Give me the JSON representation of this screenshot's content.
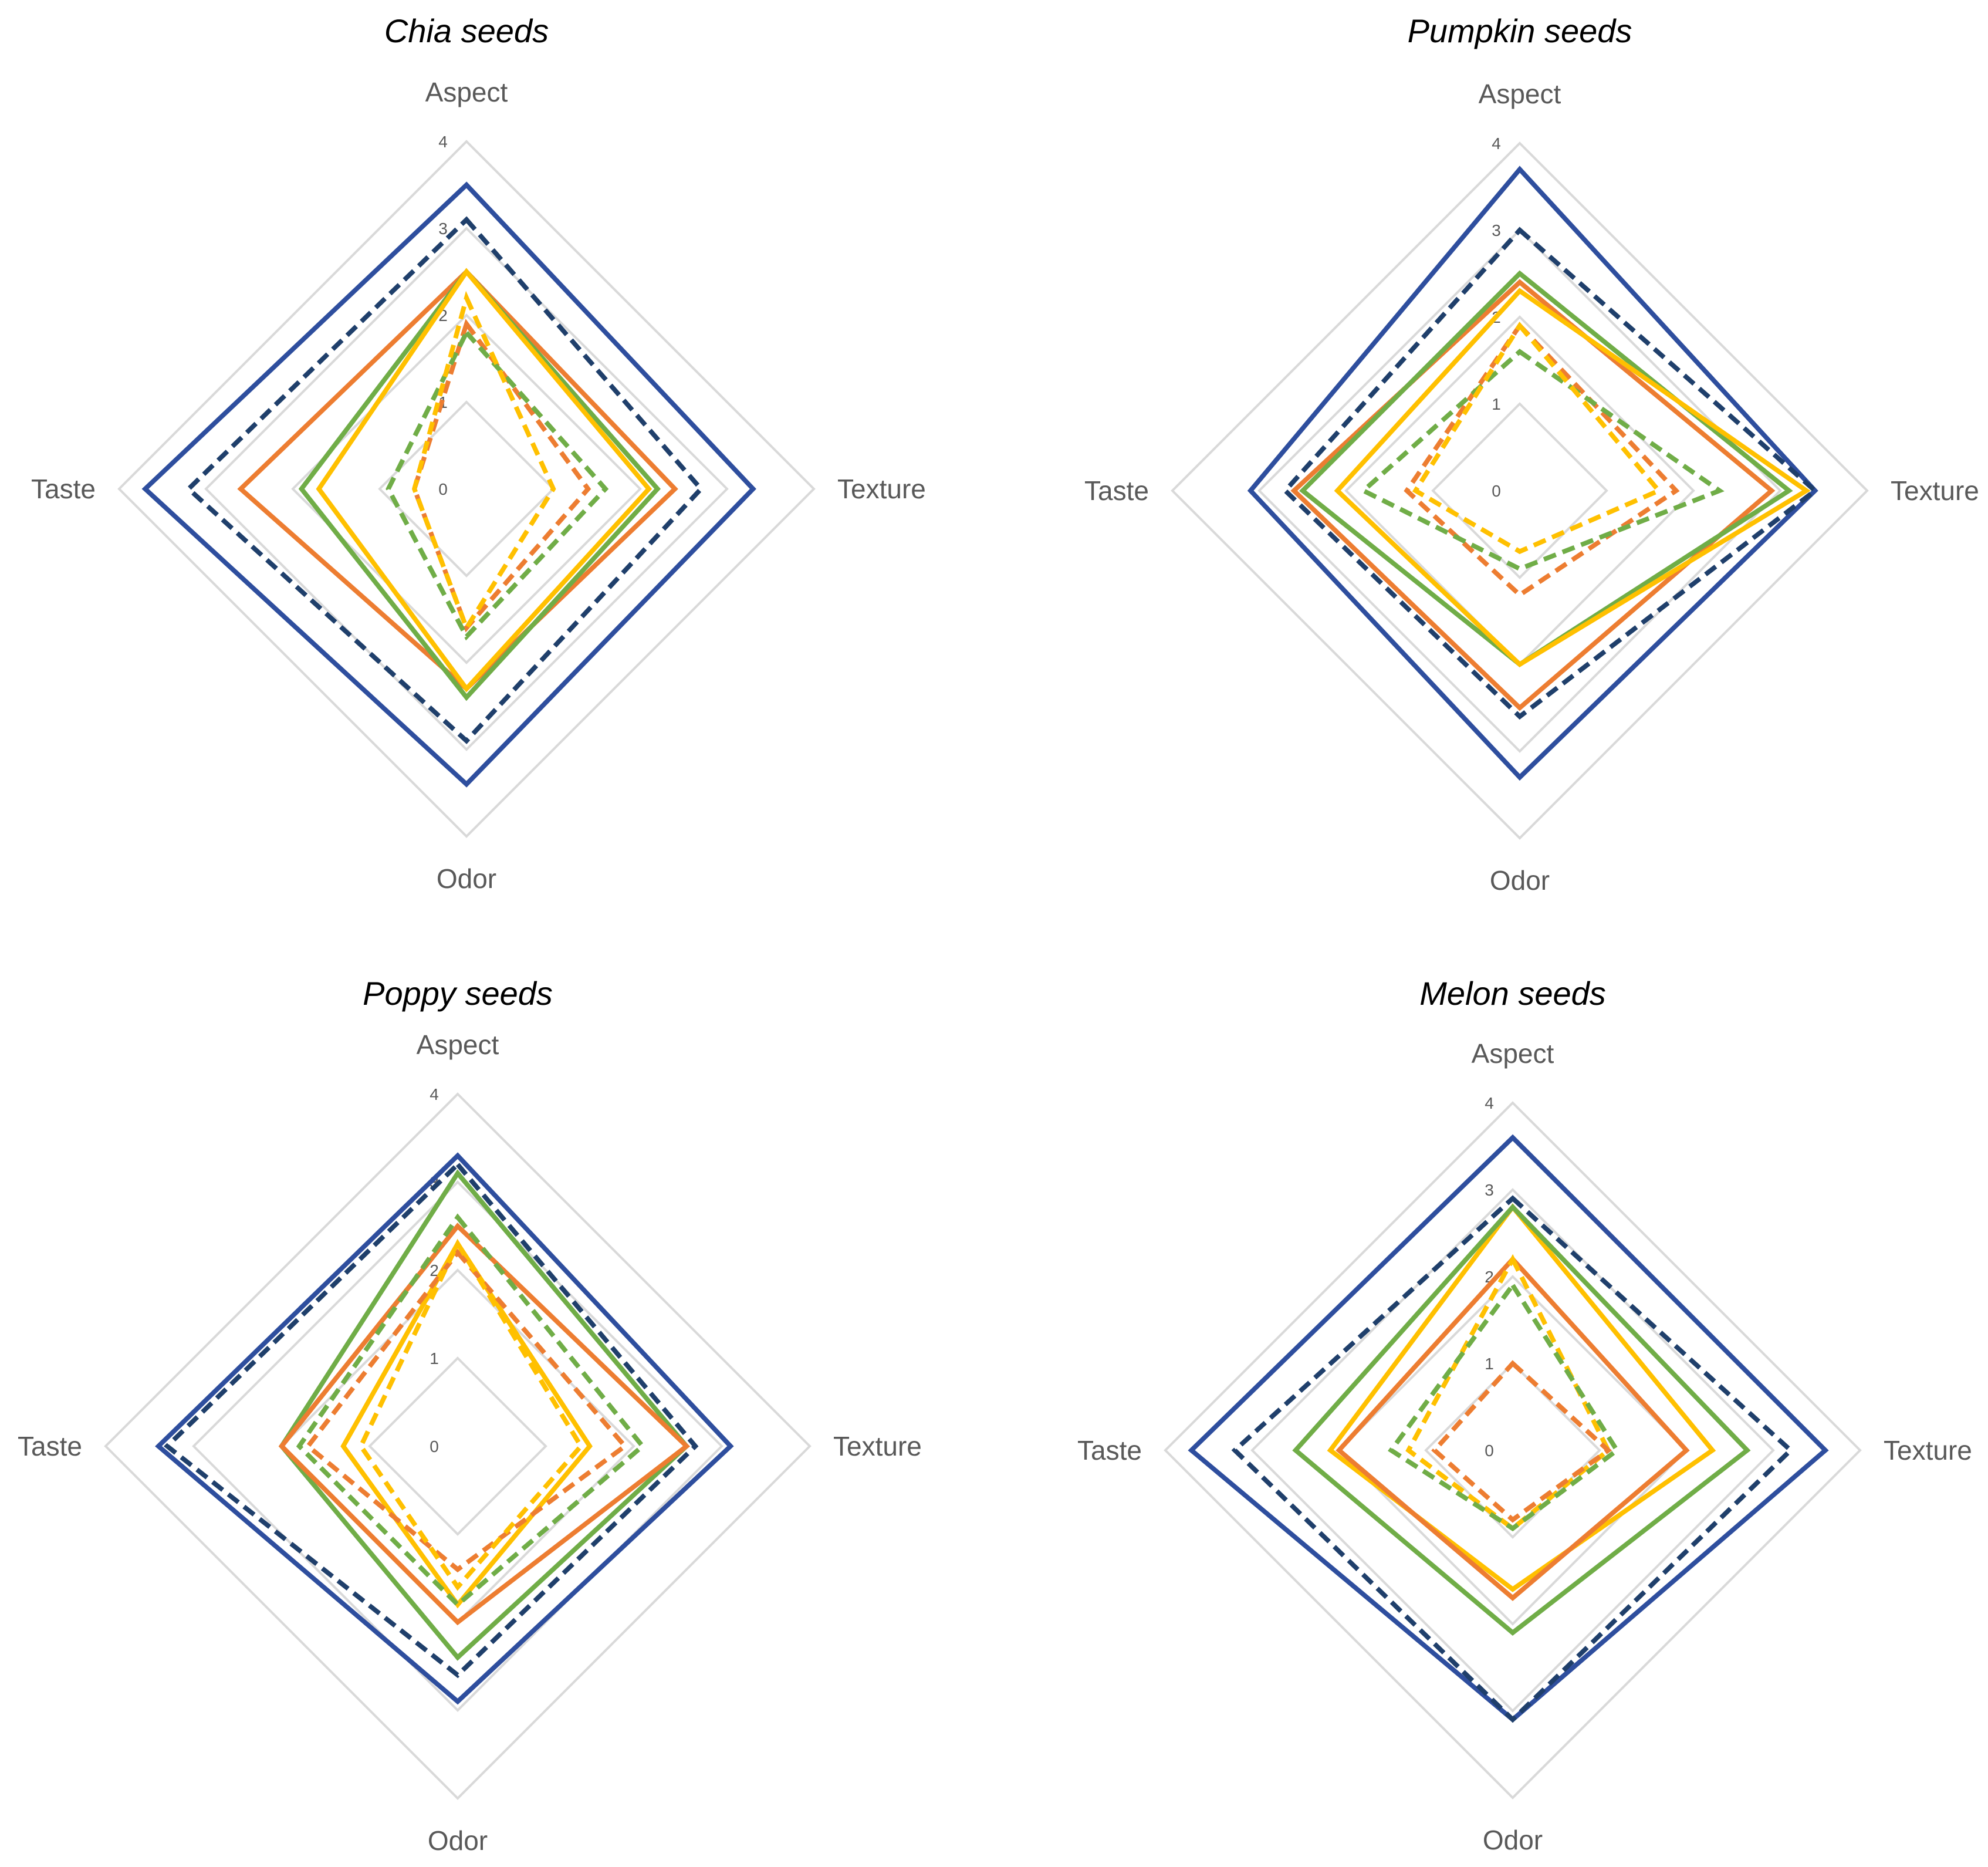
{
  "chart_data": [
    {
      "type": "radar",
      "title": "Chia seeds",
      "axes": [
        "Aspect",
        "Texture",
        "Odor",
        "Taste"
      ],
      "rlim": [
        0,
        4
      ],
      "ticks": [
        "0",
        "1",
        "2",
        "3",
        "4"
      ],
      "grid": true,
      "series": [
        {
          "color": "#2e4e9e",
          "dash": "solid",
          "values": [
            3.5,
            3.3,
            3.4,
            3.7
          ]
        },
        {
          "color": "#1f3f6b",
          "dash": "dashed",
          "values": [
            3.1,
            2.7,
            2.9,
            3.2
          ]
        },
        {
          "color": "#ed7d31",
          "dash": "solid",
          "values": [
            2.5,
            2.4,
            2.3,
            2.6
          ]
        },
        {
          "color": "#70ad47",
          "dash": "solid",
          "values": [
            2.5,
            2.2,
            2.4,
            1.9
          ]
        },
        {
          "color": "#ffc000",
          "dash": "solid",
          "values": [
            2.5,
            2.1,
            2.3,
            1.7
          ]
        },
        {
          "color": "#ed7d31",
          "dash": "dashed",
          "values": [
            1.9,
            1.4,
            1.6,
            0.6
          ]
        },
        {
          "color": "#70ad47",
          "dash": "dashed",
          "values": [
            1.8,
            1.6,
            1.7,
            0.9
          ]
        },
        {
          "color": "#ffc000",
          "dash": "dashed",
          "values": [
            2.2,
            1.0,
            1.6,
            0.6
          ]
        }
      ]
    },
    {
      "type": "radar",
      "title": "Pumpkin seeds",
      "axes": [
        "Aspect",
        "Texture",
        "Odor",
        "Taste"
      ],
      "rlim": [
        0,
        4
      ],
      "ticks": [
        "0",
        "1",
        "2",
        "3",
        "4"
      ],
      "grid": true,
      "series": [
        {
          "color": "#2e4e9e",
          "dash": "solid",
          "values": [
            3.7,
            3.4,
            3.3,
            3.1
          ]
        },
        {
          "color": "#1f3f6b",
          "dash": "dashed",
          "values": [
            3.0,
            3.4,
            2.6,
            2.7
          ]
        },
        {
          "color": "#ed7d31",
          "dash": "solid",
          "values": [
            2.4,
            2.9,
            2.5,
            2.6
          ]
        },
        {
          "color": "#70ad47",
          "dash": "solid",
          "values": [
            2.5,
            3.1,
            2.0,
            2.5
          ]
        },
        {
          "color": "#ffc000",
          "dash": "solid",
          "values": [
            2.3,
            3.3,
            2.0,
            2.1
          ]
        },
        {
          "color": "#ed7d31",
          "dash": "dashed",
          "values": [
            1.9,
            1.8,
            1.2,
            1.3
          ]
        },
        {
          "color": "#70ad47",
          "dash": "dashed",
          "values": [
            1.6,
            2.3,
            0.9,
            1.8
          ]
        },
        {
          "color": "#ffc000",
          "dash": "dashed",
          "values": [
            1.9,
            1.6,
            0.7,
            1.2
          ]
        }
      ]
    },
    {
      "type": "radar",
      "title": "Poppy seeds",
      "axes": [
        "Aspect",
        "Texture",
        "Odor",
        "Taste"
      ],
      "rlim": [
        0,
        4
      ],
      "ticks": [
        "0",
        "1",
        "2",
        "3",
        "4"
      ],
      "grid": true,
      "series": [
        {
          "color": "#2e4e9e",
          "dash": "solid",
          "values": [
            3.3,
            3.1,
            2.9,
            3.4
          ]
        },
        {
          "color": "#1f3f6b",
          "dash": "dashed",
          "values": [
            3.2,
            2.7,
            2.6,
            3.3
          ]
        },
        {
          "color": "#70ad47",
          "dash": "solid",
          "values": [
            3.1,
            2.6,
            2.4,
            2.0
          ]
        },
        {
          "color": "#ed7d31",
          "dash": "solid",
          "values": [
            2.5,
            2.6,
            2.0,
            2.0
          ]
        },
        {
          "color": "#ffc000",
          "dash": "solid",
          "values": [
            2.3,
            1.5,
            1.8,
            1.3
          ]
        },
        {
          "color": "#70ad47",
          "dash": "dashed",
          "values": [
            2.6,
            2.1,
            1.8,
            1.8
          ]
        },
        {
          "color": "#ed7d31",
          "dash": "dashed",
          "values": [
            2.2,
            1.9,
            1.4,
            1.7
          ]
        },
        {
          "color": "#ffc000",
          "dash": "dashed",
          "values": [
            2.3,
            1.4,
            1.6,
            1.1
          ]
        }
      ]
    },
    {
      "type": "radar",
      "title": "Melon seeds",
      "axes": [
        "Aspect",
        "Texture",
        "Odor",
        "Taste"
      ],
      "rlim": [
        0,
        4
      ],
      "ticks": [
        "0",
        "1",
        "2",
        "3",
        "4"
      ],
      "grid": true,
      "series": [
        {
          "color": "#2e4e9e",
          "dash": "solid",
          "values": [
            3.6,
            3.6,
            3.1,
            3.7
          ]
        },
        {
          "color": "#1f3f6b",
          "dash": "dashed",
          "values": [
            2.9,
            3.2,
            3.1,
            3.2
          ]
        },
        {
          "color": "#ffc000",
          "dash": "solid",
          "values": [
            2.8,
            2.3,
            1.6,
            2.1
          ]
        },
        {
          "color": "#70ad47",
          "dash": "solid",
          "values": [
            2.8,
            2.7,
            2.1,
            2.5
          ]
        },
        {
          "color": "#ed7d31",
          "dash": "solid",
          "values": [
            2.2,
            2.0,
            1.7,
            2.0
          ]
        },
        {
          "color": "#ffc000",
          "dash": "dashed",
          "values": [
            2.2,
            1.1,
            0.9,
            1.2
          ]
        },
        {
          "color": "#70ad47",
          "dash": "dashed",
          "values": [
            1.9,
            1.2,
            0.9,
            1.4
          ]
        },
        {
          "color": "#ed7d31",
          "dash": "dashed",
          "values": [
            1.0,
            1.1,
            0.8,
            0.9
          ]
        }
      ]
    }
  ]
}
